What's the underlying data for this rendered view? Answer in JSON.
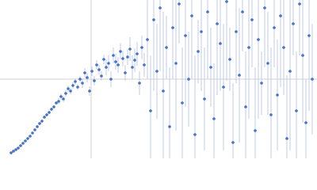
{
  "chart_data": {
    "type": "scatter",
    "color": "#4472c4",
    "error_color": "#bfcbe8",
    "grid": true,
    "xlim": [
      0,
      400
    ],
    "ylim": [
      0,
      200
    ],
    "xticks": [
      115
    ],
    "yticks": [
      100
    ],
    "x": [
      14,
      17,
      20,
      23,
      26,
      29,
      32,
      35,
      38,
      41,
      44,
      47,
      50,
      53,
      56,
      59,
      62,
      65,
      68,
      71,
      74,
      77,
      80,
      83,
      86,
      89,
      92,
      95,
      98,
      101,
      104,
      107,
      110,
      113,
      116,
      119,
      122,
      125,
      128,
      131,
      134,
      137,
      140,
      143,
      146,
      149,
      152,
      155,
      158,
      161,
      164,
      167,
      170,
      173,
      176,
      179,
      182,
      186,
      190,
      194,
      198,
      202,
      206,
      210,
      214,
      218,
      222,
      226,
      230,
      234,
      238,
      242,
      246,
      250,
      254,
      258,
      262,
      266,
      270,
      274,
      278,
      282,
      286,
      290,
      294,
      298,
      302,
      306,
      310,
      314,
      318,
      322,
      326,
      330,
      334,
      338,
      342,
      346,
      350,
      354,
      358,
      362,
      366,
      370,
      374,
      378,
      382,
      386,
      390,
      394
    ],
    "values": [
      7,
      9,
      11,
      13,
      16,
      19,
      22,
      25,
      28,
      32,
      36,
      40,
      44,
      47,
      52,
      55,
      58,
      62,
      65,
      70,
      72,
      78,
      75,
      82,
      88,
      85,
      92,
      97,
      90,
      100,
      95,
      108,
      102,
      85,
      110,
      98,
      118,
      112,
      104,
      125,
      115,
      120,
      100,
      130,
      122,
      118,
      135,
      126,
      108,
      128,
      138,
      115,
      124,
      132,
      95,
      140,
      118,
      150,
      60,
      175,
      110,
      190,
      85,
      140,
      40,
      165,
      120,
      195,
      70,
      155,
      100,
      180,
      30,
      135,
      160,
      75,
      185,
      115,
      50,
      170,
      145,
      90,
      198,
      125,
      20,
      160,
      105,
      185,
      65,
      140,
      175,
      35,
      150,
      95,
      190,
      120,
      55,
      165,
      80,
      180,
      140,
      25,
      110,
      170,
      60,
      195,
      130,
      45,
      155,
      100
    ],
    "errors": [
      1,
      1,
      1,
      1,
      1,
      1,
      1,
      1,
      1,
      1,
      2,
      2,
      2,
      2,
      2,
      2,
      2,
      2,
      2,
      2,
      4,
      4,
      4,
      4,
      4,
      4,
      4,
      4,
      4,
      4,
      6,
      6,
      6,
      6,
      6,
      6,
      6,
      6,
      6,
      6,
      10,
      10,
      10,
      10,
      10,
      10,
      10,
      10,
      10,
      10,
      15,
      15,
      15,
      15,
      15,
      15,
      15,
      50,
      70,
      90,
      60,
      80,
      100,
      40,
      75,
      65,
      85,
      50,
      70,
      90,
      60,
      80,
      100,
      40,
      75,
      65,
      85,
      50,
      70,
      90,
      60,
      80,
      100,
      40,
      75,
      65,
      85,
      50,
      70,
      90,
      60,
      80,
      100,
      40,
      75,
      65,
      85,
      50,
      70,
      90,
      60,
      80,
      100,
      40,
      75,
      65,
      85,
      55,
      95,
      70
    ]
  }
}
